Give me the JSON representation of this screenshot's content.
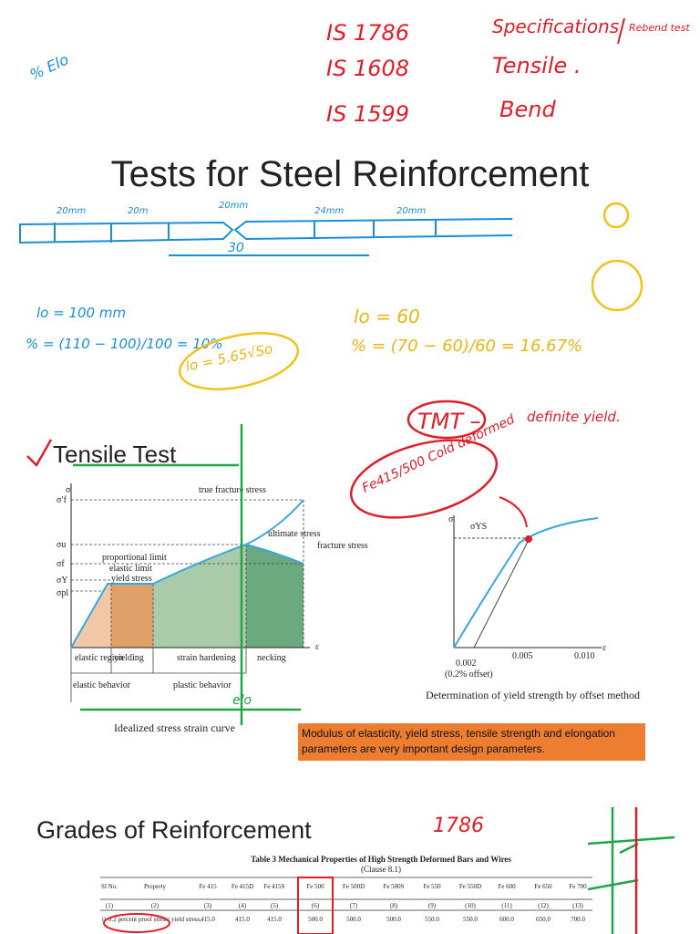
{
  "title": "Tests for Steel Reinforcement",
  "handwritten_notes": {
    "is_1786": "IS 1786",
    "specifications": "Specifications",
    "rebend": "Rebend test",
    "is_1608": "IS 1608",
    "tensile": "Tensile .",
    "is_1599": "IS 1599",
    "bend": "Bend",
    "elongation": "% Elo",
    "bar_labels": [
      "20mm",
      "20m",
      "20mm",
      "24mm",
      "20mm"
    ],
    "bar_length": "30",
    "l0_100": "lo = 100 mm",
    "percent_10": "% = (110 − 100)/100 = 10%",
    "l0_60": "lo = 60",
    "percent_16": "% = (70 − 60)/60 = 16.67%",
    "gauge": "lo = 5.65√So",
    "tmt": "TMT –",
    "definite_yield": "definite yield.",
    "fe_cold": "Fe415/500 Cold deformed",
    "elo": "elo",
    "ref_1786": "1786"
  },
  "tensile_section": {
    "heading": "Tensile Test",
    "figure1": {
      "axis_y": "σ",
      "axis_x": "ε",
      "y_labels": [
        "σ′f",
        "σu",
        "σf",
        "σY",
        "σpl"
      ],
      "annotations": [
        "true fracture stress",
        "ultimate stress",
        "fracture stress",
        "proportional limit",
        "elastic limit",
        "yield stress"
      ],
      "regions": [
        "elastic region",
        "yielding",
        "strain hardening",
        "necking"
      ],
      "behaviors": [
        "elastic behavior",
        "plastic behavior"
      ],
      "caption": "Idealized stress strain curve"
    },
    "figure2": {
      "axis_y": "σ",
      "axis_x": "ε",
      "yield_label": "σYS",
      "x_labels": [
        "0.002",
        "0.005",
        "0.010"
      ],
      "offset": "(0.2% offset)",
      "caption": "Determination of yield strength by offset method"
    },
    "note": "Modulus of elasticity, yield stress, tensile strength and elongation parameters are very important design parameters."
  },
  "grades_section": {
    "heading": "Grades of Reinforcement",
    "table": {
      "title": "Table 3 Mechanical Properties of High Strength Deformed Bars and Wires",
      "clause": "(Clause 8.1)",
      "headers": [
        "Sl No.",
        "Property",
        "Fe 415",
        "Fe 415D",
        "Fe 415S",
        "Fe 500",
        "Fe 500D",
        "Fe 500S",
        "Fe 550",
        "Fe 550D",
        "Fe 600",
        "Fe 650",
        "Fe 700"
      ],
      "column_numbers": [
        "(1)",
        "(2)",
        "(3)",
        "(4)",
        "(5)",
        "(6)",
        "(7)",
        "(8)",
        "(9)",
        "(10)",
        "(11)",
        "(12)",
        "(13)"
      ],
      "rows": [
        [
          "i)",
          "0.2 percent proof stress/ yield stress,",
          "415.0",
          "415.0",
          "415.0",
          "500.0",
          "500.0",
          "500.0",
          "550.0",
          "550.0",
          "600.0",
          "650.0",
          "700.0"
        ]
      ]
    }
  }
}
